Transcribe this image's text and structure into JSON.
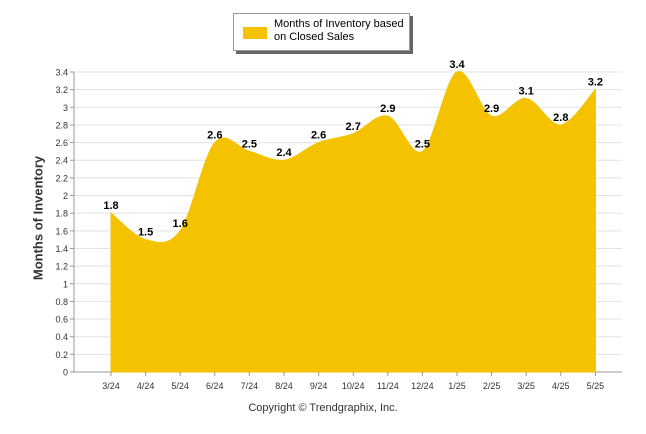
{
  "chart_data": {
    "type": "area",
    "categories": [
      "3/24",
      "4/24",
      "5/24",
      "6/24",
      "7/24",
      "8/24",
      "9/24",
      "10/24",
      "11/24",
      "12/24",
      "1/25",
      "2/25",
      "3/25",
      "4/25",
      "5/25"
    ],
    "series": [
      {
        "name": "Months of Inventory based on Closed Sales",
        "values": [
          1.8,
          1.5,
          1.6,
          2.6,
          2.5,
          2.4,
          2.6,
          2.7,
          2.9,
          2.5,
          3.4,
          2.9,
          3.1,
          2.8,
          3.2
        ],
        "color": "#f5c200"
      }
    ],
    "ylabel": "Months of Inventory",
    "xlabel": "",
    "ylim": [
      0,
      3.4
    ],
    "yticks": [
      0,
      0.2,
      0.4,
      0.6,
      0.8,
      1,
      1.2,
      1.4,
      1.6,
      1.8,
      2,
      2.2,
      2.4,
      2.6,
      2.8,
      3,
      3.2,
      3.4
    ],
    "grid": true,
    "legend_position": "top-center",
    "data_labels": true
  },
  "legend": {
    "label": "Months of Inventory based on Closed Sales"
  },
  "footer": {
    "copyright": "Copyright © Trendgraphix, Inc."
  }
}
